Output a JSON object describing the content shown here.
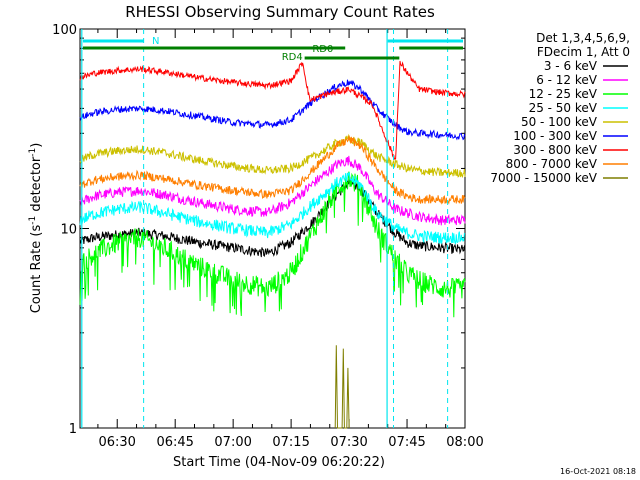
{
  "chart_data": {
    "type": "line",
    "title": "RHESSI Observing Summary Count Rates",
    "xlabel": "Start Time (04-Nov-09 06:20:22)",
    "ylabel": "Count Rate (s⁻¹ detector⁻¹)",
    "ylabel_main": "Count Rate (s",
    "ylabel_sup": "-1",
    "ylabel_mid": " detector",
    "ylabel_end": ")",
    "y_scale": "log",
    "ylim": [
      1,
      100
    ],
    "xlim": [
      "06:20:22",
      "08:00:00"
    ],
    "x_ticks": [
      "06:30",
      "06:45",
      "07:00",
      "07:15",
      "07:30",
      "07:45",
      "08:00"
    ],
    "y_ticks": [
      "1",
      "10",
      "100"
    ],
    "legend_header": [
      "Det 1,3,4,5,6,9,",
      "FDecim 1, Att 0"
    ],
    "legend_position": "right",
    "timestamp": "16-Oct-2021 08:18",
    "flags": [
      {
        "label": "N",
        "color": "#00e5ee"
      },
      {
        "label": "RD0",
        "color": "#007f00"
      },
      {
        "label": "RD4",
        "color": "#007f00"
      }
    ],
    "series": [
      {
        "name": "3 - 6 keV",
        "color": "#000000",
        "points": [
          [
            6.34,
            8.6
          ],
          [
            6.4,
            9.0
          ],
          [
            6.5,
            9.3
          ],
          [
            6.6,
            9.5
          ],
          [
            6.7,
            9.2
          ],
          [
            6.85,
            8.5
          ],
          [
            7.0,
            8.0
          ],
          [
            7.15,
            7.5
          ],
          [
            7.25,
            8.5
          ],
          [
            7.35,
            11
          ],
          [
            7.45,
            15
          ],
          [
            7.5,
            17
          ],
          [
            7.55,
            16
          ],
          [
            7.62,
            12
          ],
          [
            7.7,
            9.5
          ],
          [
            7.75,
            8.5
          ],
          [
            7.8,
            8.2
          ],
          [
            7.9,
            8.0
          ],
          [
            8.0,
            7.8
          ]
        ]
      },
      {
        "name": "6 - 12 keV",
        "color": "#ff00ff",
        "points": [
          [
            6.34,
            13.5
          ],
          [
            6.4,
            14.5
          ],
          [
            6.5,
            15.2
          ],
          [
            6.6,
            15.5
          ],
          [
            6.7,
            14.8
          ],
          [
            6.85,
            13.5
          ],
          [
            7.0,
            12.5
          ],
          [
            7.15,
            12
          ],
          [
            7.25,
            13.5
          ],
          [
            7.35,
            17
          ],
          [
            7.45,
            21
          ],
          [
            7.5,
            22
          ],
          [
            7.55,
            20
          ],
          [
            7.62,
            15
          ],
          [
            7.7,
            12.5
          ],
          [
            7.75,
            12
          ],
          [
            7.8,
            11.5
          ],
          [
            7.9,
            11
          ],
          [
            8.0,
            11
          ]
        ]
      },
      {
        "name": "12 - 25 keV",
        "color": "#00ff00",
        "points": [
          [
            6.34,
            6.6
          ],
          [
            6.4,
            7.5
          ],
          [
            6.5,
            8.5
          ],
          [
            6.6,
            9.0
          ],
          [
            6.7,
            8.0
          ],
          [
            6.85,
            6.5
          ],
          [
            7.0,
            5.5
          ],
          [
            7.15,
            5.0
          ],
          [
            7.25,
            6.0
          ],
          [
            7.35,
            10
          ],
          [
            7.45,
            16
          ],
          [
            7.5,
            18
          ],
          [
            7.55,
            16
          ],
          [
            7.62,
            10
          ],
          [
            7.7,
            7
          ],
          [
            7.75,
            6
          ],
          [
            7.8,
            5.5
          ],
          [
            7.9,
            5.0
          ],
          [
            8.0,
            5.0
          ]
        ]
      },
      {
        "name": "25 - 50 keV",
        "color": "#00ffff",
        "points": [
          [
            6.34,
            11
          ],
          [
            6.4,
            11.8
          ],
          [
            6.5,
            12.5
          ],
          [
            6.6,
            12.8
          ],
          [
            6.7,
            12
          ],
          [
            6.85,
            10.8
          ],
          [
            7.0,
            10
          ],
          [
            7.15,
            9.5
          ],
          [
            7.25,
            10.5
          ],
          [
            7.35,
            13.5
          ],
          [
            7.45,
            17
          ],
          [
            7.5,
            18
          ],
          [
            7.55,
            16.5
          ],
          [
            7.62,
            12
          ],
          [
            7.7,
            10
          ],
          [
            7.75,
            9.5
          ],
          [
            7.8,
            9.2
          ],
          [
            7.9,
            9.0
          ],
          [
            8.0,
            9.0
          ]
        ]
      },
      {
        "name": "50 - 100 keV",
        "color": "#ccc000",
        "points": [
          [
            6.34,
            22
          ],
          [
            6.4,
            23.5
          ],
          [
            6.5,
            24.5
          ],
          [
            6.6,
            25
          ],
          [
            6.7,
            24
          ],
          [
            6.85,
            22
          ],
          [
            7.0,
            20.5
          ],
          [
            7.15,
            19.5
          ],
          [
            7.25,
            20
          ],
          [
            7.35,
            23
          ],
          [
            7.45,
            27
          ],
          [
            7.5,
            28
          ],
          [
            7.55,
            27
          ],
          [
            7.62,
            23
          ],
          [
            7.7,
            21
          ],
          [
            7.75,
            20
          ],
          [
            7.8,
            19.5
          ],
          [
            7.9,
            19
          ],
          [
            8.0,
            19
          ]
        ]
      },
      {
        "name": "100 - 300 keV",
        "color": "#0000ff",
        "points": [
          [
            6.34,
            36
          ],
          [
            6.4,
            38
          ],
          [
            6.5,
            39.5
          ],
          [
            6.6,
            40
          ],
          [
            6.7,
            39
          ],
          [
            6.85,
            36.5
          ],
          [
            7.0,
            34
          ],
          [
            7.15,
            33
          ],
          [
            7.25,
            35
          ],
          [
            7.35,
            44
          ],
          [
            7.45,
            52
          ],
          [
            7.5,
            54
          ],
          [
            7.55,
            50
          ],
          [
            7.62,
            40
          ],
          [
            7.7,
            33
          ],
          [
            7.75,
            30.5
          ],
          [
            7.8,
            30
          ],
          [
            7.9,
            29.5
          ],
          [
            8.0,
            29
          ]
        ]
      },
      {
        "name": "300 - 800 keV",
        "color": "#ff0000",
        "points": [
          [
            6.34,
            57
          ],
          [
            6.4,
            60
          ],
          [
            6.5,
            62
          ],
          [
            6.6,
            63
          ],
          [
            6.7,
            61
          ],
          [
            6.85,
            57
          ],
          [
            7.0,
            54
          ],
          [
            7.15,
            52
          ],
          [
            7.25,
            55
          ],
          [
            7.3,
            68
          ],
          [
            7.33,
            44
          ],
          [
            7.4,
            47
          ],
          [
            7.5,
            50
          ],
          [
            7.6,
            42
          ],
          [
            7.65,
            30
          ],
          [
            7.7,
            22
          ],
          [
            7.72,
            68
          ],
          [
            7.8,
            50
          ],
          [
            7.9,
            48
          ],
          [
            8.0,
            47
          ]
        ]
      },
      {
        "name": "800 - 7000 keV",
        "color": "#ff7f00",
        "points": [
          [
            6.34,
            16.5
          ],
          [
            6.4,
            17.5
          ],
          [
            6.5,
            18.2
          ],
          [
            6.6,
            18.5
          ],
          [
            6.7,
            17.8
          ],
          [
            6.85,
            16.5
          ],
          [
            7.0,
            15.5
          ],
          [
            7.15,
            14.8
          ],
          [
            7.25,
            15.5
          ],
          [
            7.35,
            20
          ],
          [
            7.45,
            26
          ],
          [
            7.5,
            28
          ],
          [
            7.55,
            26
          ],
          [
            7.62,
            20
          ],
          [
            7.7,
            15.5
          ],
          [
            7.75,
            14.5
          ],
          [
            7.8,
            14
          ],
          [
            7.9,
            14
          ],
          [
            8.0,
            14
          ]
        ]
      },
      {
        "name": "7000 - 15000 keV",
        "color": "#7f7f00",
        "points": [
          [
            7.44,
            1.0
          ],
          [
            7.445,
            2.6
          ],
          [
            7.45,
            1.0
          ],
          [
            7.47,
            1.0
          ],
          [
            7.475,
            2.5
          ],
          [
            7.48,
            1.0
          ],
          [
            7.49,
            1.0
          ],
          [
            7.495,
            2.0
          ],
          [
            7.5,
            1.0
          ]
        ]
      }
    ]
  }
}
